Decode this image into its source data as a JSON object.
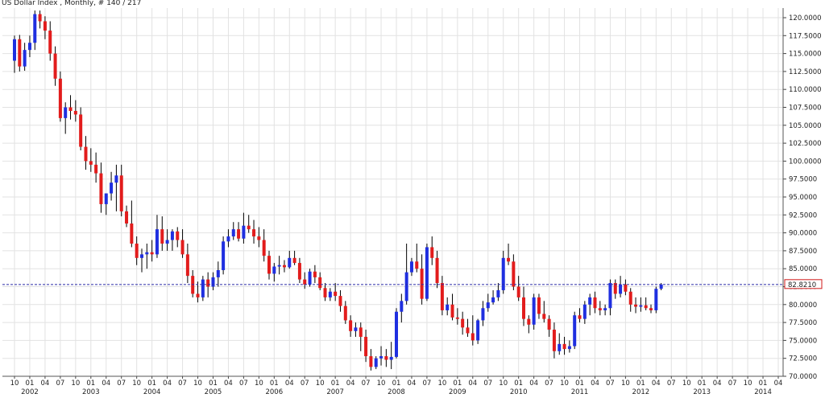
{
  "chart_data": {
    "type": "candlestick",
    "title": "US Dollar Index , Monthly, # 140 / 217",
    "current_price_label": "82.8210",
    "colors": {
      "up": "#1f2fe0",
      "down": "#e21c1c",
      "wick": "#000000",
      "grid": "#e2e2e2",
      "current_line": "#2a2aa8",
      "current_label_border": "#d01818"
    },
    "ylim": [
      70,
      121.5
    ],
    "y_ticks": [
      "70.0000",
      "72.5000",
      "75.0000",
      "77.5000",
      "80.0000",
      "82.5000",
      "85.0000",
      "87.5000",
      "90.0000",
      "92.5000",
      "95.0000",
      "97.5000",
      "100.0000",
      "102.5000",
      "105.0000",
      "107.5000",
      "110.0000",
      "112.5000",
      "115.0000",
      "117.5000",
      "120.0000"
    ],
    "x_month_labels": [
      "10",
      "01",
      "04",
      "07",
      "10",
      "01",
      "04",
      "07",
      "10",
      "01",
      "04",
      "07",
      "10",
      "01",
      "04",
      "07",
      "10",
      "01",
      "04",
      "07",
      "10",
      "01",
      "04",
      "07",
      "10",
      "01",
      "04",
      "07",
      "10",
      "01",
      "04",
      "07",
      "10",
      "01",
      "04",
      "07",
      "10",
      "01",
      "04",
      "07",
      "10",
      "01",
      "04",
      "07",
      "10",
      "01",
      "04",
      "07",
      "10",
      "01",
      "04"
    ],
    "x_year_labels": [
      "2002",
      "2003",
      "2004",
      "2005",
      "2006",
      "2007",
      "2008",
      "2009",
      "2010",
      "2011",
      "2012",
      "2013",
      "2014"
    ],
    "start_month": "2001-10",
    "candles": [
      {
        "o": 114.0,
        "h": 117.5,
        "l": 112.3,
        "c": 117.0
      },
      {
        "o": 117.0,
        "h": 117.6,
        "l": 112.5,
        "c": 113.2
      },
      {
        "o": 113.2,
        "h": 116.5,
        "l": 112.6,
        "c": 115.5
      },
      {
        "o": 115.5,
        "h": 117.5,
        "l": 114.5,
        "c": 116.5
      },
      {
        "o": 116.5,
        "h": 121.0,
        "l": 115.5,
        "c": 120.5
      },
      {
        "o": 120.5,
        "h": 121.0,
        "l": 118.5,
        "c": 119.5
      },
      {
        "o": 119.5,
        "h": 120.2,
        "l": 117.0,
        "c": 118.2
      },
      {
        "o": 118.2,
        "h": 119.5,
        "l": 114.0,
        "c": 115.0
      },
      {
        "o": 115.0,
        "h": 116.0,
        "l": 110.5,
        "c": 111.5
      },
      {
        "o": 111.5,
        "h": 112.5,
        "l": 105.5,
        "c": 106.0
      },
      {
        "o": 106.0,
        "h": 108.2,
        "l": 103.8,
        "c": 107.5
      },
      {
        "o": 107.5,
        "h": 109.2,
        "l": 105.8,
        "c": 107.0
      },
      {
        "o": 107.0,
        "h": 108.5,
        "l": 105.5,
        "c": 106.5
      },
      {
        "o": 106.5,
        "h": 107.5,
        "l": 101.5,
        "c": 102.0
      },
      {
        "o": 102.0,
        "h": 103.5,
        "l": 98.8,
        "c": 100.0
      },
      {
        "o": 100.0,
        "h": 101.8,
        "l": 98.5,
        "c": 99.5
      },
      {
        "o": 99.5,
        "h": 101.2,
        "l": 97.0,
        "c": 98.3
      },
      {
        "o": 98.3,
        "h": 99.8,
        "l": 92.8,
        "c": 94.0
      },
      {
        "o": 94.0,
        "h": 95.5,
        "l": 92.5,
        "c": 95.5
      },
      {
        "o": 95.5,
        "h": 98.5,
        "l": 94.5,
        "c": 97.0
      },
      {
        "o": 97.0,
        "h": 99.5,
        "l": 93.0,
        "c": 98.0
      },
      {
        "o": 98.0,
        "h": 99.5,
        "l": 92.3,
        "c": 93.0
      },
      {
        "o": 93.0,
        "h": 93.8,
        "l": 90.8,
        "c": 91.3
      },
      {
        "o": 91.3,
        "h": 94.5,
        "l": 88.0,
        "c": 88.5
      },
      {
        "o": 88.5,
        "h": 89.5,
        "l": 85.5,
        "c": 86.5
      },
      {
        "o": 86.5,
        "h": 87.8,
        "l": 84.5,
        "c": 87.0
      },
      {
        "o": 87.0,
        "h": 88.5,
        "l": 85.0,
        "c": 87.3
      },
      {
        "o": 87.3,
        "h": 89.0,
        "l": 86.0,
        "c": 87.0
      },
      {
        "o": 87.0,
        "h": 92.5,
        "l": 86.5,
        "c": 90.5
      },
      {
        "o": 90.5,
        "h": 92.3,
        "l": 87.5,
        "c": 88.5
      },
      {
        "o": 88.5,
        "h": 90.5,
        "l": 87.5,
        "c": 89.0
      },
      {
        "o": 89.0,
        "h": 90.5,
        "l": 87.5,
        "c": 90.2
      },
      {
        "o": 90.2,
        "h": 90.8,
        "l": 88.0,
        "c": 89.0
      },
      {
        "o": 89.0,
        "h": 90.5,
        "l": 86.5,
        "c": 87.0
      },
      {
        "o": 87.0,
        "h": 88.5,
        "l": 83.0,
        "c": 84.0
      },
      {
        "o": 84.0,
        "h": 84.8,
        "l": 81.0,
        "c": 81.5
      },
      {
        "o": 81.5,
        "h": 83.2,
        "l": 80.3,
        "c": 81.0
      },
      {
        "o": 81.0,
        "h": 84.0,
        "l": 80.5,
        "c": 83.5
      },
      {
        "o": 83.5,
        "h": 84.5,
        "l": 81.0,
        "c": 82.5
      },
      {
        "o": 82.5,
        "h": 84.5,
        "l": 82.0,
        "c": 83.8
      },
      {
        "o": 83.8,
        "h": 86.0,
        "l": 82.5,
        "c": 84.8
      },
      {
        "o": 84.8,
        "h": 89.5,
        "l": 84.2,
        "c": 88.8
      },
      {
        "o": 88.8,
        "h": 90.5,
        "l": 88.0,
        "c": 89.5
      },
      {
        "o": 89.5,
        "h": 91.5,
        "l": 89.0,
        "c": 90.5
      },
      {
        "o": 90.5,
        "h": 91.5,
        "l": 88.8,
        "c": 89.2
      },
      {
        "o": 89.2,
        "h": 92.8,
        "l": 88.5,
        "c": 91.0
      },
      {
        "o": 91.0,
        "h": 92.5,
        "l": 90.0,
        "c": 90.5
      },
      {
        "o": 90.5,
        "h": 91.8,
        "l": 88.5,
        "c": 89.5
      },
      {
        "o": 89.5,
        "h": 90.8,
        "l": 88.0,
        "c": 89.0
      },
      {
        "o": 89.0,
        "h": 90.5,
        "l": 86.0,
        "c": 86.8
      },
      {
        "o": 86.8,
        "h": 87.5,
        "l": 83.5,
        "c": 84.3
      },
      {
        "o": 84.3,
        "h": 85.8,
        "l": 83.2,
        "c": 85.3
      },
      {
        "o": 85.3,
        "h": 86.8,
        "l": 84.2,
        "c": 85.5
      },
      {
        "o": 85.5,
        "h": 86.2,
        "l": 84.5,
        "c": 85.2
      },
      {
        "o": 85.2,
        "h": 87.5,
        "l": 85.0,
        "c": 86.5
      },
      {
        "o": 86.5,
        "h": 87.5,
        "l": 85.5,
        "c": 85.8
      },
      {
        "o": 85.8,
        "h": 86.5,
        "l": 83.0,
        "c": 83.5
      },
      {
        "o": 83.5,
        "h": 84.5,
        "l": 82.2,
        "c": 82.8
      },
      {
        "o": 82.8,
        "h": 85.0,
        "l": 82.5,
        "c": 84.6
      },
      {
        "o": 84.6,
        "h": 85.5,
        "l": 83.0,
        "c": 83.8
      },
      {
        "o": 83.8,
        "h": 84.5,
        "l": 82.0,
        "c": 82.3
      },
      {
        "o": 82.3,
        "h": 83.0,
        "l": 80.5,
        "c": 81.0
      },
      {
        "o": 81.0,
        "h": 82.3,
        "l": 80.5,
        "c": 81.8
      },
      {
        "o": 81.8,
        "h": 83.0,
        "l": 80.5,
        "c": 81.2
      },
      {
        "o": 81.2,
        "h": 82.0,
        "l": 79.0,
        "c": 79.8
      },
      {
        "o": 79.8,
        "h": 80.5,
        "l": 77.3,
        "c": 77.8
      },
      {
        "o": 77.8,
        "h": 78.5,
        "l": 75.5,
        "c": 76.3
      },
      {
        "o": 76.3,
        "h": 77.5,
        "l": 75.5,
        "c": 76.8
      },
      {
        "o": 76.8,
        "h": 77.5,
        "l": 73.5,
        "c": 75.5
      },
      {
        "o": 75.5,
        "h": 76.5,
        "l": 72.0,
        "c": 72.8
      },
      {
        "o": 72.8,
        "h": 73.8,
        "l": 70.8,
        "c": 71.3
      },
      {
        "o": 71.3,
        "h": 72.8,
        "l": 71.0,
        "c": 72.5
      },
      {
        "o": 72.5,
        "h": 74.2,
        "l": 71.5,
        "c": 72.8
      },
      {
        "o": 72.8,
        "h": 73.8,
        "l": 71.3,
        "c": 72.3
      },
      {
        "o": 72.3,
        "h": 74.8,
        "l": 71.0,
        "c": 72.7
      },
      {
        "o": 72.7,
        "h": 79.5,
        "l": 72.5,
        "c": 79.0
      },
      {
        "o": 79.0,
        "h": 81.5,
        "l": 77.5,
        "c": 80.5
      },
      {
        "o": 80.5,
        "h": 88.5,
        "l": 80.0,
        "c": 84.5
      },
      {
        "o": 84.5,
        "h": 86.5,
        "l": 84.0,
        "c": 86.0
      },
      {
        "o": 86.0,
        "h": 88.5,
        "l": 84.5,
        "c": 85.0
      },
      {
        "o": 85.0,
        "h": 87.0,
        "l": 80.0,
        "c": 80.8
      },
      {
        "o": 80.8,
        "h": 88.5,
        "l": 80.5,
        "c": 88.0
      },
      {
        "o": 88.0,
        "h": 89.5,
        "l": 85.5,
        "c": 86.5
      },
      {
        "o": 86.5,
        "h": 87.5,
        "l": 82.3,
        "c": 83.0
      },
      {
        "o": 83.0,
        "h": 84.0,
        "l": 78.5,
        "c": 79.2
      },
      {
        "o": 79.2,
        "h": 81.0,
        "l": 78.5,
        "c": 80.0
      },
      {
        "o": 80.0,
        "h": 81.5,
        "l": 77.8,
        "c": 78.2
      },
      {
        "o": 78.2,
        "h": 79.5,
        "l": 77.2,
        "c": 78.0
      },
      {
        "o": 78.0,
        "h": 79.0,
        "l": 75.8,
        "c": 76.8
      },
      {
        "o": 76.8,
        "h": 78.0,
        "l": 75.5,
        "c": 76.0
      },
      {
        "o": 76.0,
        "h": 78.5,
        "l": 74.3,
        "c": 75.0
      },
      {
        "o": 75.0,
        "h": 78.0,
        "l": 74.5,
        "c": 77.8
      },
      {
        "o": 77.8,
        "h": 80.5,
        "l": 77.0,
        "c": 79.5
      },
      {
        "o": 79.5,
        "h": 81.5,
        "l": 79.0,
        "c": 80.3
      },
      {
        "o": 80.3,
        "h": 82.0,
        "l": 80.0,
        "c": 81.0
      },
      {
        "o": 81.0,
        "h": 83.0,
        "l": 80.5,
        "c": 82.0
      },
      {
        "o": 82.0,
        "h": 87.5,
        "l": 81.5,
        "c": 86.5
      },
      {
        "o": 86.5,
        "h": 88.5,
        "l": 85.5,
        "c": 86.0
      },
      {
        "o": 86.0,
        "h": 87.0,
        "l": 82.0,
        "c": 82.5
      },
      {
        "o": 82.5,
        "h": 84.0,
        "l": 80.5,
        "c": 81.0
      },
      {
        "o": 81.0,
        "h": 82.5,
        "l": 77.0,
        "c": 78.0
      },
      {
        "o": 78.0,
        "h": 78.5,
        "l": 76.0,
        "c": 77.2
      },
      {
        "o": 77.2,
        "h": 81.5,
        "l": 76.5,
        "c": 81.0
      },
      {
        "o": 81.0,
        "h": 81.5,
        "l": 78.0,
        "c": 78.7
      },
      {
        "o": 78.7,
        "h": 80.5,
        "l": 77.5,
        "c": 78.0
      },
      {
        "o": 78.0,
        "h": 78.5,
        "l": 75.5,
        "c": 76.5
      },
      {
        "o": 76.5,
        "h": 77.5,
        "l": 72.5,
        "c": 73.5
      },
      {
        "o": 73.5,
        "h": 76.0,
        "l": 73.0,
        "c": 74.5
      },
      {
        "o": 74.5,
        "h": 75.5,
        "l": 73.0,
        "c": 73.8
      },
      {
        "o": 73.8,
        "h": 75.0,
        "l": 73.3,
        "c": 74.2
      },
      {
        "o": 74.2,
        "h": 79.0,
        "l": 73.8,
        "c": 78.5
      },
      {
        "o": 78.5,
        "h": 79.5,
        "l": 77.5,
        "c": 78.0
      },
      {
        "o": 78.0,
        "h": 80.5,
        "l": 77.3,
        "c": 80.0
      },
      {
        "o": 80.0,
        "h": 81.5,
        "l": 78.5,
        "c": 81.0
      },
      {
        "o": 81.0,
        "h": 81.8,
        "l": 78.8,
        "c": 79.5
      },
      {
        "o": 79.5,
        "h": 80.5,
        "l": 78.5,
        "c": 79.2
      },
      {
        "o": 79.2,
        "h": 80.0,
        "l": 78.5,
        "c": 79.5
      },
      {
        "o": 79.5,
        "h": 83.5,
        "l": 78.5,
        "c": 83.0
      },
      {
        "o": 83.0,
        "h": 83.5,
        "l": 80.8,
        "c": 81.5
      },
      {
        "o": 81.5,
        "h": 84.0,
        "l": 81.0,
        "c": 82.8
      },
      {
        "o": 82.8,
        "h": 83.5,
        "l": 81.3,
        "c": 81.8
      },
      {
        "o": 81.8,
        "h": 82.3,
        "l": 79.0,
        "c": 80.0
      },
      {
        "o": 80.0,
        "h": 81.0,
        "l": 78.8,
        "c": 79.7
      },
      {
        "o": 79.7,
        "h": 81.0,
        "l": 79.0,
        "c": 79.9
      },
      {
        "o": 79.9,
        "h": 81.0,
        "l": 79.2,
        "c": 79.5
      },
      {
        "o": 79.5,
        "h": 80.0,
        "l": 78.8,
        "c": 79.2
      },
      {
        "o": 79.2,
        "h": 82.5,
        "l": 78.8,
        "c": 82.2
      },
      {
        "o": 82.2,
        "h": 83.0,
        "l": 82.0,
        "c": 82.8
      }
    ]
  }
}
